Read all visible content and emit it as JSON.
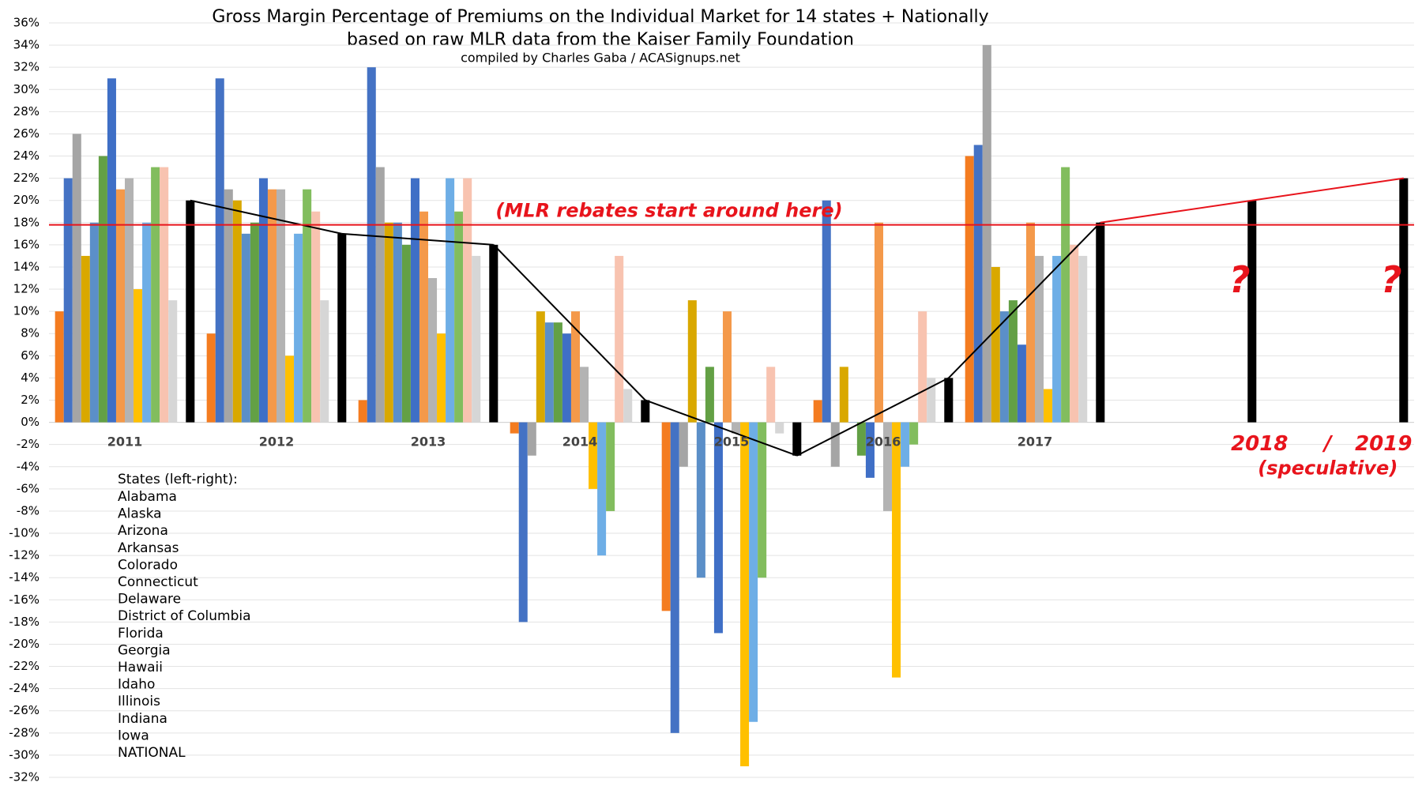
{
  "chart_data": {
    "type": "bar",
    "title": "Gross Margin Percentage of Premiums on the Individual Market for 14 states + Nationally",
    "subtitle": "based on raw MLR data from the Kaiser Family Foundation",
    "credit": "compiled by Charles Gaba / ACASignups.net",
    "categories": [
      "2011",
      "2012",
      "2013",
      "2014",
      "2015",
      "2016",
      "2017",
      "2018",
      "2019"
    ],
    "legend_title": "States (left-right):",
    "series": [
      {
        "name": "Alabama",
        "color": "#f47c20",
        "values": [
          10,
          8,
          2,
          -1,
          -17,
          2,
          24,
          null,
          null
        ]
      },
      {
        "name": "Alaska",
        "color": "#4472c4",
        "values": [
          22,
          31,
          32,
          -18,
          -28,
          20,
          25,
          null,
          null
        ]
      },
      {
        "name": "Arizona",
        "color": "#a5a5a5",
        "values": [
          26,
          21,
          23,
          -3,
          -4,
          -4,
          34,
          null,
          null
        ]
      },
      {
        "name": "Arkansas",
        "color": "#d9a800",
        "values": [
          15,
          20,
          18,
          10,
          11,
          5,
          14,
          null,
          null
        ]
      },
      {
        "name": "Colorado",
        "color": "#5b8fc8",
        "values": [
          18,
          17,
          18,
          9,
          -14,
          0,
          10,
          null,
          null
        ]
      },
      {
        "name": "Connecticut",
        "color": "#63a045",
        "values": [
          24,
          18,
          16,
          9,
          5,
          -3,
          11,
          null,
          null
        ]
      },
      {
        "name": "Delaware",
        "color": "#3f6fc6",
        "values": [
          31,
          22,
          22,
          8,
          -19,
          -5,
          7,
          null,
          null
        ]
      },
      {
        "name": "District of Columbia",
        "color": "#f4994a",
        "values": [
          21,
          21,
          19,
          10,
          10,
          18,
          18,
          null,
          null
        ]
      },
      {
        "name": "Florida",
        "color": "#b3b3b3",
        "values": [
          22,
          21,
          13,
          5,
          -1,
          -8,
          15,
          null,
          null
        ]
      },
      {
        "name": "Georgia",
        "color": "#ffc000",
        "values": [
          12,
          6,
          8,
          -6,
          -31,
          -23,
          3,
          null,
          null
        ]
      },
      {
        "name": "Hawaii",
        "color": "#6eaee6",
        "values": [
          18,
          17,
          22,
          -12,
          -27,
          -4,
          15,
          null,
          null
        ]
      },
      {
        "name": "Idaho",
        "color": "#82bd5e",
        "values": [
          23,
          21,
          19,
          -8,
          -14,
          -2,
          23,
          null,
          null
        ]
      },
      {
        "name": "Illinois",
        "color": "#f8c3b0",
        "values": [
          23,
          19,
          22,
          15,
          5,
          10,
          16,
          null,
          null
        ]
      },
      {
        "name": "Indiana",
        "color": "#d6d6d6",
        "values": [
          11,
          11,
          15,
          3,
          -1,
          4,
          15,
          null,
          null
        ]
      },
      {
        "name": "Iowa",
        "values": [
          null,
          null,
          null,
          null,
          null,
          null,
          null,
          null,
          null
        ]
      },
      {
        "name": "NATIONAL",
        "color": "#000000",
        "values": [
          20,
          17,
          16,
          2,
          -3,
          4,
          18,
          20,
          22
        ]
      }
    ],
    "ylim": [
      -32,
      36
    ],
    "yticks": [
      {
        "value": -32,
        "label": "-32%"
      },
      {
        "value": -30,
        "label": "-30%"
      },
      {
        "value": -28,
        "label": "-28%"
      },
      {
        "value": -26,
        "label": "-26%"
      },
      {
        "value": -24,
        "label": "-24%"
      },
      {
        "value": -22,
        "label": "-22%"
      },
      {
        "value": -20,
        "label": "-20%"
      },
      {
        "value": -18,
        "label": "-18%"
      },
      {
        "value": -16,
        "label": "-16%"
      },
      {
        "value": -14,
        "label": "-14%"
      },
      {
        "value": -12,
        "label": "-12%"
      },
      {
        "value": -10,
        "label": "-10%"
      },
      {
        "value": -8,
        "label": "-8%"
      },
      {
        "value": -6,
        "label": "-6%"
      },
      {
        "value": -4,
        "label": "-4%"
      },
      {
        "value": -2,
        "label": "-2%"
      },
      {
        "value": 0,
        "label": "0%"
      },
      {
        "value": 2,
        "label": "2%"
      },
      {
        "value": 4,
        "label": "4%"
      },
      {
        "value": 6,
        "label": "6%"
      },
      {
        "value": 8,
        "label": "8%"
      },
      {
        "value": 10,
        "label": "10%"
      },
      {
        "value": 12,
        "label": "12%"
      },
      {
        "value": 14,
        "label": "14%"
      },
      {
        "value": 16,
        "label": "16%"
      },
      {
        "value": 18,
        "label": "18%"
      },
      {
        "value": 20,
        "label": "20%"
      },
      {
        "value": 22,
        "label": "22%"
      },
      {
        "value": 24,
        "label": "24%"
      },
      {
        "value": 26,
        "label": "26%"
      },
      {
        "value": 28,
        "label": "28%"
      },
      {
        "value": 30,
        "label": "30%"
      },
      {
        "value": 32,
        "label": "32%"
      },
      {
        "value": 34,
        "label": "34%"
      },
      {
        "value": 36,
        "label": "36%"
      }
    ],
    "grid": true,
    "threshold": {
      "value": 17.8,
      "label": "(MLR rebates start around here)",
      "color": "#e8141c"
    },
    "speculative_label": "(speculative)",
    "speculative_separator": "/",
    "unknown_marker": "?"
  }
}
